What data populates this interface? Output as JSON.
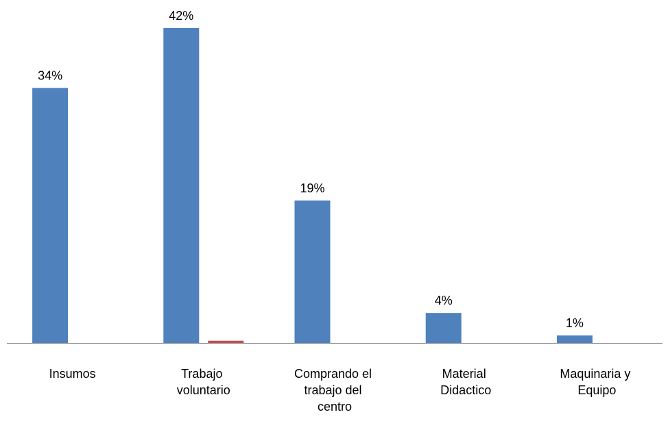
{
  "chart_data": {
    "type": "bar",
    "categories": [
      "Insumos",
      "Trabajo voluntario",
      "Comprando el trabajo del centro",
      "Material Didactico",
      "Maquinaria y Equipo"
    ],
    "series": [
      {
        "color": "#4f81bd",
        "values": [
          34,
          42,
          19,
          4,
          1
        ],
        "value_labels": [
          "34%",
          "42%",
          "19%",
          "4%",
          "1%"
        ]
      },
      {
        "color": "#c0504d",
        "values": [
          null,
          0.3,
          null,
          null,
          null
        ]
      }
    ],
    "ylim": [
      0,
      45
    ]
  }
}
